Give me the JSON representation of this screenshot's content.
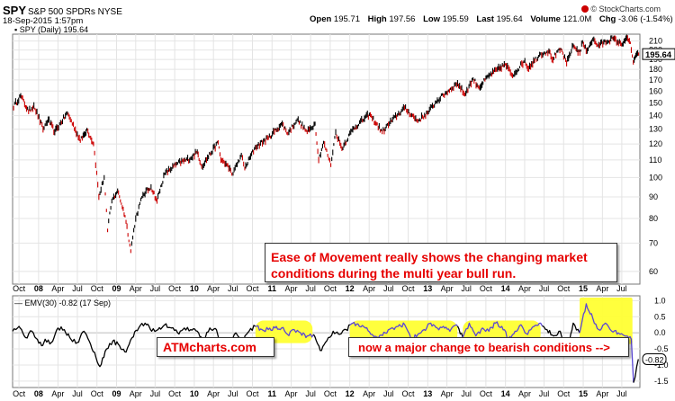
{
  "header": {
    "symbol": "SPY",
    "name": "S&P 500 SPDRs NYSE",
    "timestamp": "18-Sep-2015 1:57pm",
    "open_label": "Open",
    "open": "195.71",
    "high_label": "High",
    "high": "197.56",
    "low_label": "Low",
    "low": "195.59",
    "last_label": "Last",
    "last": "195.64",
    "volume_label": "Volume",
    "volume": "121.0M",
    "chg_label": "Chg",
    "chg": "-3.06 (-1.54%)",
    "chg_marker": "▼",
    "credit": "© StockCharts.com"
  },
  "legends": {
    "price": "SPY (Daily) 195.64",
    "indicator": "EMV(30) -0.82 (17 Sep)"
  },
  "annotations": {
    "main_line1": "Ease of Movement really shows the changing market",
    "main_line2": "conditions during the multi year bull run.",
    "site": "ATMcharts.com",
    "bearish": "now a major change to bearish conditions -->"
  },
  "colors": {
    "price_up": "#000000",
    "price_down": "#cc0000",
    "emv_line": "#000000",
    "emv_highlighted_line": "#5a46d6",
    "highlight": "#ffff33",
    "annotation_text": "#e60000",
    "grid": "#e4e4e4"
  },
  "chart_data": [
    {
      "type": "line",
      "title": "SPY (Daily) 195.64",
      "y_scale": "log",
      "ylim": [
        56,
        218
      ],
      "y_ticks": [
        60,
        70,
        80,
        90,
        100,
        110,
        120,
        130,
        140,
        150,
        160,
        170,
        180,
        190,
        200,
        210
      ],
      "last_value_label": "195.64",
      "x_tick_labels": [
        "Oct",
        "08",
        "Apr",
        "Jul",
        "Oct",
        "09",
        "Apr",
        "Jul",
        "Oct",
        "10",
        "Apr",
        "Jul",
        "Oct",
        "11",
        "Apr",
        "Jul",
        "Oct",
        "12",
        "Apr",
        "Jul",
        "Oct",
        "13",
        "Apr",
        "Jul",
        "Oct",
        "14",
        "Apr",
        "Jul",
        "Oct",
        "15",
        "Apr",
        "Jul"
      ],
      "grid": true,
      "series": [
        {
          "x": [
            "2007-09-01",
            "2007-10-09",
            "2007-11-15",
            "2007-12-10",
            "2008-01-22",
            "2008-02-15",
            "2008-03-17",
            "2008-05-15",
            "2008-07-15",
            "2008-08-15",
            "2008-09-15",
            "2008-10-10",
            "2008-11-04",
            "2008-11-20",
            "2008-12-10",
            "2009-01-06",
            "2009-02-10",
            "2009-03-09",
            "2009-04-01",
            "2009-05-05",
            "2009-06-12",
            "2009-07-10",
            "2009-08-15",
            "2009-10-15",
            "2009-12-15",
            "2010-01-15",
            "2010-02-05",
            "2010-04-23",
            "2010-05-06",
            "2010-05-20",
            "2010-06-21",
            "2010-07-02",
            "2010-08-10",
            "2010-08-26",
            "2010-10-15",
            "2010-12-15",
            "2011-02-18",
            "2011-03-16",
            "2011-04-29",
            "2011-06-15",
            "2011-07-22",
            "2011-08-08",
            "2011-08-31",
            "2011-10-04",
            "2011-10-27",
            "2011-11-25",
            "2012-01-15",
            "2012-04-02",
            "2012-06-01",
            "2012-07-15",
            "2012-09-14",
            "2012-11-15",
            "2012-12-31",
            "2013-02-15",
            "2013-05-21",
            "2013-06-24",
            "2013-08-02",
            "2013-08-30",
            "2013-10-15",
            "2013-12-31",
            "2014-02-03",
            "2014-04-02",
            "2014-04-15",
            "2014-06-15",
            "2014-07-24",
            "2014-08-07",
            "2014-09-18",
            "2014-10-15",
            "2014-11-15",
            "2014-12-16",
            "2014-12-29",
            "2015-01-15",
            "2015-02-15",
            "2015-03-10",
            "2015-05-20",
            "2015-06-29",
            "2015-07-20",
            "2015-08-10",
            "2015-08-24",
            "2015-09-01",
            "2015-09-18"
          ],
          "values": [
            146,
            156,
            143,
            148,
            130,
            137,
            128,
            142,
            122,
            130,
            120,
            90,
            100,
            75,
            88,
            93,
            81,
            67,
            80,
            91,
            95,
            88,
            102,
            108,
            111,
            115,
            106,
            121,
            110,
            109,
            104,
            102,
            113,
            105,
            118,
            124,
            134,
            127,
            137,
            128,
            134,
            110,
            121,
            107,
            128,
            117,
            130,
            141,
            128,
            136,
            146,
            136,
            142,
            152,
            167,
            157,
            171,
            163,
            174,
            185,
            174,
            189,
            181,
            196,
            199,
            190,
            201,
            186,
            205,
            197,
            209,
            199,
            212,
            205,
            213,
            206,
            213,
            208,
            187,
            192,
            195.64
          ]
        }
      ]
    },
    {
      "type": "line",
      "title": "EMV(30) -0.82 (17 Sep)",
      "ylim": [
        -1.7,
        1.15
      ],
      "y_ticks": [
        -1.5,
        -1.0,
        -0.5,
        0.0,
        0.5,
        1.0
      ],
      "y_tick_labels": [
        "-1.5",
        "-1.0",
        "-0.5",
        "0.0",
        "0.5",
        "1.0"
      ],
      "last_value_label": "-0.82",
      "x_tick_labels": [
        "Oct",
        "08",
        "Apr",
        "Jul",
        "Oct",
        "09",
        "Apr",
        "Jul",
        "Oct",
        "10",
        "Apr",
        "Jul",
        "Oct",
        "11",
        "Apr",
        "Jul",
        "Oct",
        "12",
        "Apr",
        "Jul",
        "Oct",
        "13",
        "Apr",
        "Jul",
        "Oct",
        "14",
        "Apr",
        "Jul",
        "Oct",
        "15",
        "Apr",
        "Jul"
      ],
      "grid": true,
      "highlighted_ranges": [
        [
          "2010-10-15",
          "2011-07-10"
        ],
        [
          "2012-01-01",
          "2013-05-20"
        ],
        [
          "2013-06-15",
          "2014-06-15"
        ],
        [
          "2014-12-15",
          "2015-08-20"
        ]
      ],
      "series": [
        {
          "x": [
            "2007-09-01",
            "2007-10-01",
            "2007-11-01",
            "2007-12-01",
            "2008-01-15",
            "2008-02-01",
            "2008-03-01",
            "2008-04-01",
            "2008-05-01",
            "2008-06-01",
            "2008-07-01",
            "2008-08-01",
            "2008-09-01",
            "2008-10-15",
            "2008-11-15",
            "2008-12-15",
            "2009-01-15",
            "2009-02-15",
            "2009-03-15",
            "2009-04-15",
            "2009-05-15",
            "2009-06-15",
            "2009-07-15",
            "2009-08-15",
            "2009-09-15",
            "2009-10-15",
            "2009-11-15",
            "2009-12-15",
            "2010-01-15",
            "2010-02-15",
            "2010-03-15",
            "2010-04-15",
            "2010-05-15",
            "2010-06-15",
            "2010-07-15",
            "2010-08-15",
            "2010-09-15",
            "2010-10-15",
            "2010-11-15",
            "2010-12-15",
            "2011-01-15",
            "2011-02-15",
            "2011-03-15",
            "2011-04-15",
            "2011-05-15",
            "2011-06-15",
            "2011-07-15",
            "2011-08-15",
            "2011-09-15",
            "2011-10-15",
            "2011-11-15",
            "2011-12-15",
            "2012-01-15",
            "2012-02-15",
            "2012-03-15",
            "2012-04-15",
            "2012-05-15",
            "2012-06-15",
            "2012-07-15",
            "2012-08-15",
            "2012-09-15",
            "2012-10-15",
            "2012-11-15",
            "2012-12-15",
            "2013-01-15",
            "2013-02-15",
            "2013-03-15",
            "2013-04-15",
            "2013-05-15",
            "2013-06-15",
            "2013-07-15",
            "2013-08-15",
            "2013-09-15",
            "2013-10-15",
            "2013-11-15",
            "2013-12-15",
            "2014-01-15",
            "2014-02-15",
            "2014-03-15",
            "2014-04-15",
            "2014-05-15",
            "2014-06-15",
            "2014-07-15",
            "2014-08-15",
            "2014-09-15",
            "2014-10-15",
            "2014-11-15",
            "2014-12-15",
            "2015-01-15",
            "2015-02-15",
            "2015-03-15",
            "2015-04-15",
            "2015-05-15",
            "2015-06-15",
            "2015-07-15",
            "2015-08-15",
            "2015-08-25",
            "2015-09-17"
          ],
          "values": [
            0.05,
            0.2,
            -0.15,
            0.05,
            -0.4,
            -0.2,
            -0.3,
            0.15,
            0.1,
            -0.2,
            -0.3,
            0.05,
            -0.35,
            -1.05,
            -0.5,
            -0.25,
            -0.4,
            -0.6,
            -0.15,
            0.15,
            0.3,
            0.05,
            0.1,
            0.25,
            0.15,
            0.0,
            0.15,
            0.1,
            0.05,
            -0.25,
            0.15,
            0.1,
            -0.55,
            -0.3,
            0.0,
            -0.25,
            0.05,
            0.2,
            0.1,
            0.1,
            0.15,
            0.15,
            -0.05,
            0.1,
            0.0,
            -0.1,
            -0.05,
            -0.55,
            -0.25,
            0.05,
            -0.05,
            0.1,
            0.3,
            0.2,
            0.15,
            -0.05,
            -0.15,
            0.0,
            0.15,
            0.2,
            0.25,
            -0.2,
            -0.05,
            0.1,
            0.3,
            0.15,
            0.2,
            0.05,
            0.25,
            -0.15,
            0.3,
            -0.1,
            0.15,
            0.05,
            0.3,
            0.2,
            -0.2,
            0.05,
            0.25,
            -0.05,
            0.2,
            0.3,
            0.1,
            -0.1,
            0.05,
            -0.65,
            0.3,
            0.0,
            0.9,
            0.45,
            0.1,
            0.3,
            0.05,
            0.0,
            -0.1,
            -0.2,
            -1.55,
            -0.82
          ]
        }
      ]
    }
  ]
}
